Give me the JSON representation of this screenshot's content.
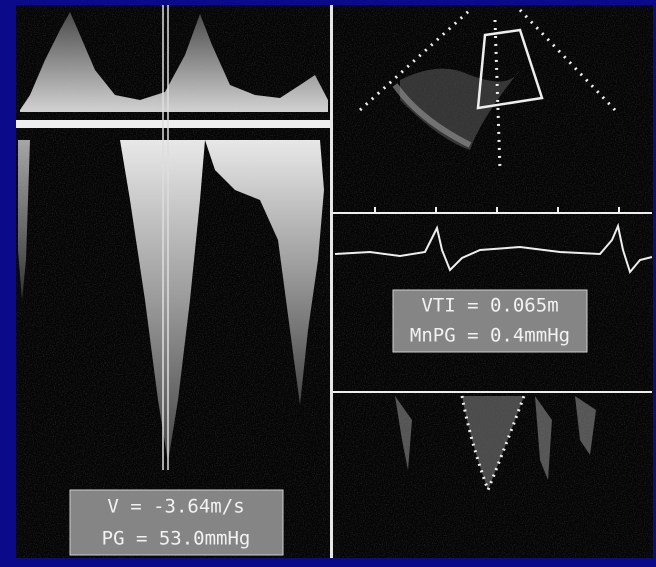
{
  "left_panel": {
    "measurements": [
      "V = -3.64m/s",
      "PG = 53.0mmHg"
    ]
  },
  "right_panel": {
    "measurements": [
      "VTI = 0.065m",
      "MnPG = 0.4mmHg"
    ]
  }
}
